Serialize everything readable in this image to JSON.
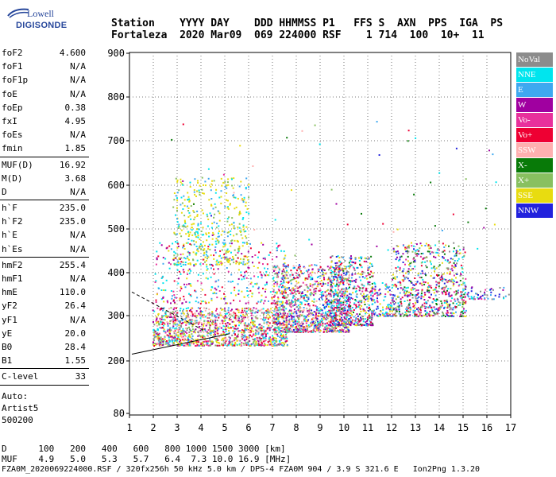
{
  "logo": {
    "line1": "Lowell",
    "line2": "DIGISONDE"
  },
  "header": {
    "line1": "Station    YYYY DAY    DDD HHMMSS P1   FFS S  AXN  PPS  IGA  PS",
    "line2": "Fortaleza  2020 Mar09  069 224000 RSF    1 714  100  10+  11"
  },
  "params_groups": [
    [
      [
        "foF2",
        "4.600"
      ],
      [
        "foF1",
        "N/A"
      ],
      [
        "foF1p",
        "N/A"
      ],
      [
        "foE",
        "N/A"
      ],
      [
        "foEp",
        "0.38"
      ],
      [
        "fxI",
        "4.95"
      ],
      [
        "foEs",
        "N/A"
      ],
      [
        "fmin",
        "1.85"
      ]
    ],
    [
      [
        "MUF(D)",
        "16.92"
      ],
      [
        "M(D)",
        "3.68"
      ],
      [
        "D",
        "N/A"
      ]
    ],
    [
      [
        "h`F",
        "235.0"
      ],
      [
        "h`F2",
        "235.0"
      ],
      [
        "h`E",
        "N/A"
      ],
      [
        "h`Es",
        "N/A"
      ]
    ],
    [
      [
        "hmF2",
        "255.4"
      ],
      [
        "hmF1",
        "N/A"
      ],
      [
        "hmE",
        "110.0"
      ],
      [
        "yF2",
        "26.4"
      ],
      [
        "yF1",
        "N/A"
      ],
      [
        "yE",
        "20.0"
      ],
      [
        "B0",
        "28.4"
      ],
      [
        "B1",
        "1.55"
      ]
    ],
    [
      [
        "C-level",
        "33"
      ]
    ]
  ],
  "auto": [
    "Auto:",
    "Artist5",
    "500200"
  ],
  "legend": [
    {
      "label": "NoVal",
      "color": "#8c8c8c"
    },
    {
      "label": "NNE",
      "color": "#00e5ee"
    },
    {
      "label": "E",
      "color": "#3ea8f0"
    },
    {
      "label": "W",
      "color": "#a000a0"
    },
    {
      "label": "Vo-",
      "color": "#e8309c"
    },
    {
      "label": "Vo+",
      "color": "#ee0033"
    },
    {
      "label": "SSW",
      "color": "#ffb0b0"
    },
    {
      "label": "X-",
      "color": "#087a08"
    },
    {
      "label": "X+",
      "color": "#88c060"
    },
    {
      "label": "SSE",
      "color": "#e8dc10"
    },
    {
      "label": "NNW",
      "color": "#2222dd"
    }
  ],
  "chart_data": {
    "type": "scatter",
    "x_ticks": [
      "1",
      "2",
      "3",
      "4",
      "5",
      "6",
      "7",
      "8",
      "9",
      "10",
      "11",
      "12",
      "13",
      "14",
      "15",
      "16",
      "17"
    ],
    "y_ticks": [
      "80",
      "200",
      "300",
      "400",
      "500",
      "600",
      "700",
      "800",
      "900"
    ],
    "xlim": [
      1,
      17
    ],
    "ylim_scale_points": [
      [
        80,
        520
      ],
      [
        200,
        454
      ],
      [
        300,
        397
      ],
      [
        400,
        343
      ],
      [
        500,
        288
      ],
      [
        600,
        233
      ],
      [
        700,
        177
      ],
      [
        800,
        122
      ],
      [
        900,
        67
      ]
    ],
    "grid": true,
    "clusters": [
      {
        "xr": [
          1.95,
          7.6
        ],
        "yr": [
          235,
          320
        ],
        "n": 1300,
        "c": [
          0,
          1,
          2,
          3,
          4,
          5,
          6,
          9,
          9,
          8
        ]
      },
      {
        "xr": [
          7.0,
          10.2
        ],
        "yr": [
          265,
          420
        ],
        "n": 1200,
        "c": [
          1,
          2,
          3,
          4,
          5,
          6,
          9,
          10,
          0,
          8
        ]
      },
      {
        "xr": [
          9.4,
          11.2
        ],
        "yr": [
          280,
          440
        ],
        "n": 500,
        "c": [
          1,
          2,
          3,
          4,
          5,
          9,
          10,
          0,
          7
        ]
      },
      {
        "xr": [
          12.0,
          15.1
        ],
        "yr": [
          300,
          470
        ],
        "n": 700,
        "c": [
          10,
          1,
          2,
          3,
          4,
          5,
          7,
          8,
          9,
          0
        ]
      },
      {
        "xr": [
          11.1,
          12.1
        ],
        "yr": [
          300,
          380
        ],
        "n": 120,
        "c": [
          1,
          2,
          10,
          4,
          9
        ]
      },
      {
        "xr": [
          2.8,
          6.0
        ],
        "yr": [
          420,
          620
        ],
        "n": 450,
        "c": [
          9,
          9,
          9,
          1,
          2,
          8
        ]
      },
      {
        "xr": [
          1.95,
          7.6
        ],
        "yr": [
          330,
          470
        ],
        "n": 350,
        "c": [
          1,
          2,
          3,
          4,
          5,
          9
        ]
      },
      {
        "xr": [
          15.0,
          17.0
        ],
        "yr": [
          340,
          370
        ],
        "n": 60,
        "c": [
          0,
          1,
          2,
          3,
          4,
          10
        ]
      }
    ],
    "lines": [
      {
        "from": [
          1.1,
          215
        ],
        "to": [
          5.2,
          260
        ],
        "dash": false
      },
      {
        "from": [
          1.1,
          355
        ],
        "to": [
          4.2,
          265
        ],
        "dash": true
      }
    ]
  },
  "footer": {
    "line1": "D      100   200   400   600   800 1000 1500 3000 [km]",
    "line2": "MUF    4.9   5.0   5.3   5.7   6.4  7.3 10.0 16.9 [MHz]",
    "line3": "FZA0M_2020069224000.RSF / 320fx256h 50 kHz 5.0 km / DPS-4 FZA0M 904 / 3.9 S 321.6 E   Ion2Png 1.3.20"
  }
}
